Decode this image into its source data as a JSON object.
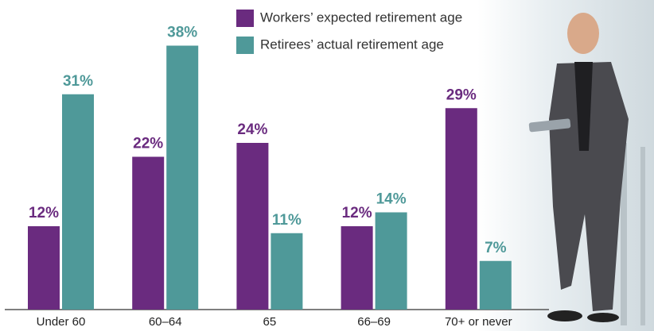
{
  "chart_data": {
    "type": "bar",
    "categories": [
      "Under 60",
      "60–64",
      "65",
      "66–69",
      "70+ or never"
    ],
    "series": [
      {
        "name": "Workers’ expected retirement age",
        "color": "#6a2b7f",
        "values": [
          12,
          22,
          24,
          12,
          29
        ],
        "value_labels": [
          "12%",
          "22%",
          "24%",
          "12%",
          "29%"
        ]
      },
      {
        "name": "Retirees’ actual retirement age",
        "color": "#4f9999",
        "values": [
          31,
          38,
          11,
          14,
          7
        ],
        "value_labels": [
          "31%",
          "38%",
          "11%",
          "14%",
          "7%"
        ]
      }
    ]
  }
}
